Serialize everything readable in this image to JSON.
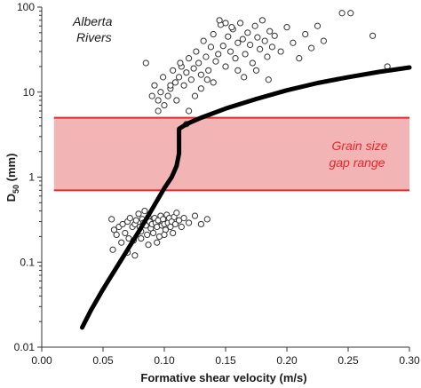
{
  "chart_data": {
    "type": "scatter",
    "title": "",
    "xlabel": "Formative shear velocity (m/s)",
    "ylabel_main": "D",
    "ylabel_sub": "50",
    "ylabel_unit": " (mm)",
    "xlim": [
      0,
      0.3
    ],
    "ylim": [
      0.01,
      100
    ],
    "yscale": "log",
    "grid": false,
    "xticks": [
      "0.00",
      "0.05",
      "0.10",
      "0.15",
      "0.20",
      "0.25",
      "0.30"
    ],
    "yticks": [
      "0.01",
      "0.1",
      "1",
      "10",
      "100"
    ],
    "annotation_title_line1": "Alberta",
    "annotation_title_line2": "Rivers",
    "band_label_line1": "Grain size",
    "band_label_line2": "gap range",
    "band": {
      "x_from": 0.01,
      "x_to": 0.3,
      "y_low": 0.7,
      "y_high": 5.0
    },
    "colors": {
      "band_fill": "#f2b4b4",
      "band_edge": "#e8262c",
      "band_text": "#e8262c",
      "curve": "#000000",
      "points": "#ffffff",
      "point_edge": "#333333"
    },
    "curve": [
      [
        0.033,
        0.017
      ],
      [
        0.04,
        0.027
      ],
      [
        0.05,
        0.048
      ],
      [
        0.06,
        0.082
      ],
      [
        0.07,
        0.14
      ],
      [
        0.08,
        0.24
      ],
      [
        0.09,
        0.42
      ],
      [
        0.1,
        0.74
      ],
      [
        0.106,
        1.0
      ],
      [
        0.11,
        1.35
      ],
      [
        0.112,
        1.9
      ],
      [
        0.112,
        3.7
      ],
      [
        0.118,
        4.2
      ],
      [
        0.13,
        5.0
      ],
      [
        0.15,
        6.4
      ],
      [
        0.175,
        8.3
      ],
      [
        0.2,
        10.5
      ],
      [
        0.225,
        12.8
      ],
      [
        0.25,
        15.0
      ],
      [
        0.275,
        17.3
      ],
      [
        0.3,
        19.5
      ]
    ],
    "series": [
      {
        "name": "",
        "points": [
          [
            0.057,
            0.32
          ],
          [
            0.059,
            0.24
          ],
          [
            0.061,
            0.21
          ],
          [
            0.063,
            0.26
          ],
          [
            0.066,
            0.28
          ],
          [
            0.068,
            0.22
          ],
          [
            0.07,
            0.3
          ],
          [
            0.071,
            0.19
          ],
          [
            0.072,
            0.33
          ],
          [
            0.074,
            0.26
          ],
          [
            0.075,
            0.18
          ],
          [
            0.076,
            0.28
          ],
          [
            0.077,
            0.31
          ],
          [
            0.079,
            0.37
          ],
          [
            0.08,
            0.26
          ],
          [
            0.081,
            0.23
          ],
          [
            0.082,
            0.32
          ],
          [
            0.083,
            0.29
          ],
          [
            0.084,
            0.4
          ],
          [
            0.085,
            0.27
          ],
          [
            0.086,
            0.21
          ],
          [
            0.087,
            0.34
          ],
          [
            0.088,
            0.3
          ],
          [
            0.089,
            0.25
          ],
          [
            0.09,
            0.28
          ],
          [
            0.091,
            0.22
          ],
          [
            0.092,
            0.33
          ],
          [
            0.093,
            0.29
          ],
          [
            0.094,
            0.26
          ],
          [
            0.095,
            0.31
          ],
          [
            0.096,
            0.2
          ],
          [
            0.097,
            0.35
          ],
          [
            0.098,
            0.27
          ],
          [
            0.099,
            0.32
          ],
          [
            0.1,
            0.28
          ],
          [
            0.101,
            0.24
          ],
          [
            0.102,
            0.36
          ],
          [
            0.103,
            0.29
          ],
          [
            0.104,
            0.33
          ],
          [
            0.105,
            0.26
          ],
          [
            0.106,
            0.3
          ],
          [
            0.107,
            0.22
          ],
          [
            0.108,
            0.34
          ],
          [
            0.109,
            0.28
          ],
          [
            0.11,
            0.38
          ],
          [
            0.112,
            0.31
          ],
          [
            0.114,
            0.26
          ],
          [
            0.116,
            0.33
          ],
          [
            0.12,
            0.29
          ],
          [
            0.125,
            0.35
          ],
          [
            0.13,
            0.28
          ],
          [
            0.135,
            0.32
          ],
          [
            0.058,
            0.14
          ],
          [
            0.065,
            0.17
          ],
          [
            0.07,
            0.13
          ],
          [
            0.076,
            0.12
          ],
          [
            0.081,
            0.19
          ],
          [
            0.087,
            0.16
          ],
          [
            0.094,
            0.17
          ],
          [
            0.1,
            0.21
          ],
          [
            0.085,
            22.0
          ],
          [
            0.09,
            9.0
          ],
          [
            0.092,
            12.0
          ],
          [
            0.095,
            8.0
          ],
          [
            0.097,
            10.0
          ],
          [
            0.099,
            15.0
          ],
          [
            0.1,
            7.0
          ],
          [
            0.103,
            9.0
          ],
          [
            0.105,
            11.0
          ],
          [
            0.107,
            18.0
          ],
          [
            0.109,
            13.0
          ],
          [
            0.11,
            8.0
          ],
          [
            0.112,
            15.0
          ],
          [
            0.114,
            20.0
          ],
          [
            0.116,
            12.0
          ],
          [
            0.118,
            17.0
          ],
          [
            0.12,
            25.0
          ],
          [
            0.122,
            14.0
          ],
          [
            0.124,
            19.0
          ],
          [
            0.126,
            30.0
          ],
          [
            0.128,
            22.0
          ],
          [
            0.13,
            16.0
          ],
          [
            0.132,
            40.0
          ],
          [
            0.134,
            26.0
          ],
          [
            0.136,
            18.0
          ],
          [
            0.138,
            34.0
          ],
          [
            0.14,
            48.0
          ],
          [
            0.142,
            23.0
          ],
          [
            0.144,
            28.0
          ],
          [
            0.146,
            62.0
          ],
          [
            0.148,
            35.0
          ],
          [
            0.15,
            20.0
          ],
          [
            0.152,
            45.0
          ],
          [
            0.154,
            30.0
          ],
          [
            0.156,
            55.0
          ],
          [
            0.158,
            25.0
          ],
          [
            0.16,
            38.0
          ],
          [
            0.162,
            65.0
          ],
          [
            0.164,
            42.0
          ],
          [
            0.166,
            28.0
          ],
          [
            0.168,
            50.0
          ],
          [
            0.17,
            36.0
          ],
          [
            0.172,
            22.0
          ],
          [
            0.174,
            60.0
          ],
          [
            0.176,
            44.0
          ],
          [
            0.178,
            32.0
          ],
          [
            0.18,
            70.0
          ],
          [
            0.182,
            40.0
          ],
          [
            0.184,
            26.0
          ],
          [
            0.186,
            52.0
          ],
          [
            0.188,
            34.0
          ],
          [
            0.19,
            46.0
          ],
          [
            0.195,
            30.0
          ],
          [
            0.2,
            58.0
          ],
          [
            0.205,
            38.0
          ],
          [
            0.21,
            25.0
          ],
          [
            0.215,
            48.0
          ],
          [
            0.22,
            33.0
          ],
          [
            0.225,
            60.0
          ],
          [
            0.23,
            40.0
          ],
          [
            0.245,
            85.0
          ],
          [
            0.252,
            85.0
          ],
          [
            0.27,
            46.0
          ],
          [
            0.282,
            20.0
          ],
          [
            0.118,
            4.2
          ],
          [
            0.095,
            6.0
          ],
          [
            0.105,
            12.0
          ],
          [
            0.113,
            22.0
          ],
          [
            0.125,
            9.0
          ],
          [
            0.13,
            11.0
          ],
          [
            0.135,
            14.0
          ],
          [
            0.14,
            13.0
          ],
          [
            0.145,
            70.0
          ],
          [
            0.15,
            65.0
          ],
          [
            0.155,
            58.0
          ],
          [
            0.16,
            18.0
          ],
          [
            0.165,
            15.0
          ],
          [
            0.175,
            18.0
          ],
          [
            0.185,
            14.0
          ],
          [
            0.12,
            6.0
          ]
        ]
      }
    ]
  }
}
